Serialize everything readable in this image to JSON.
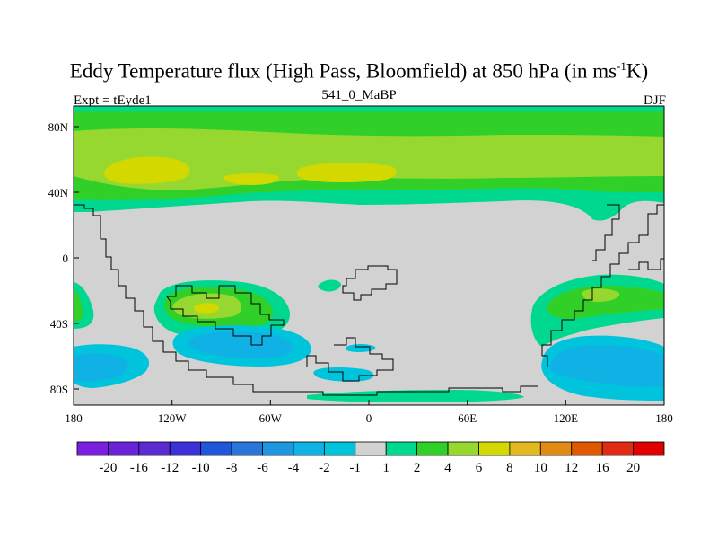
{
  "title": {
    "main": "Eddy Temperature flux (High Pass, Bloomfield) at 850 hPa (in ms",
    "sup": "-1",
    "tail": "K)"
  },
  "subtitle_left": "Expt = tEyde1",
  "subtitle_center": "541_0_MaBP",
  "subtitle_right": "DJF",
  "axes": {
    "x_ticks": [
      "180",
      "120W",
      "60W",
      "0",
      "60E",
      "120E",
      "180"
    ],
    "y_ticks": [
      "80N",
      "40N",
      "0",
      "40S",
      "80S"
    ]
  },
  "colorbar": {
    "labels": [
      "-20",
      "-16",
      "-12",
      "-10",
      "-8",
      "-6",
      "-4",
      "-2",
      "-1",
      "1",
      "2",
      "4",
      "6",
      "8",
      "10",
      "12",
      "16",
      "20"
    ],
    "colors": [
      "#7a1ee0",
      "#6a22d8",
      "#5a2ad2",
      "#3c30d6",
      "#1e56dc",
      "#2a76d8",
      "#1e96e0",
      "#10b2e6",
      "#00c4dc",
      "#d2d2d2",
      "#00d890",
      "#30d028",
      "#96d830",
      "#d2d800",
      "#e2b81e",
      "#e08c14",
      "#e05800",
      "#e02a14",
      "#e00000"
    ]
  },
  "map_colors": {
    "background": "#d2d2d2",
    "positive_1": "#00d890",
    "positive_2": "#30d028",
    "positive_3": "#96d830",
    "positive_4": "#d2d800",
    "negative_1": "#00c4dc",
    "negative_2": "#10b2e6",
    "coastline": "#000000"
  }
}
